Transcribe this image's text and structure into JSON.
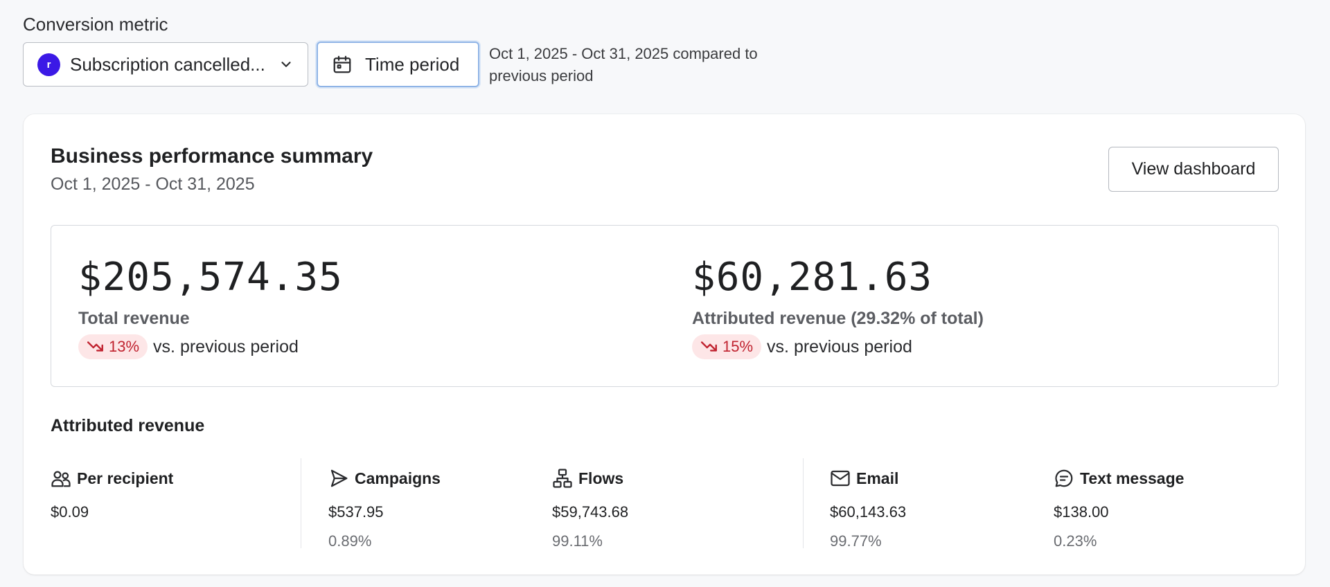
{
  "filters": {
    "metric_label": "Conversion metric",
    "metric_value": "Subscription cancelled...",
    "metric_brand_glyph": "r",
    "period_button_label": "Time period",
    "period_description": "Oct 1, 2025 - Oct 31, 2025 compared to previous period"
  },
  "summary": {
    "title": "Business performance summary",
    "date_range": "Oct 1, 2025 - Oct 31, 2025",
    "view_button_label": "View dashboard",
    "total": {
      "amount": "$205,574.35",
      "label": "Total revenue",
      "change": "13%",
      "change_direction": "down",
      "change_suffix": "vs. previous period"
    },
    "attributed": {
      "amount": "$60,281.63",
      "label": "Attributed revenue (29.32% of total)",
      "change": "15%",
      "change_direction": "down",
      "change_suffix": "vs. previous period"
    }
  },
  "attributed_breakdown": {
    "heading": "Attributed revenue",
    "items": [
      {
        "icon": "people-icon",
        "title": "Per recipient",
        "value": "$0.09",
        "pct": ""
      },
      {
        "icon": "send-icon",
        "title": "Campaigns",
        "value": "$537.95",
        "pct": "0.89%"
      },
      {
        "icon": "flow-icon",
        "title": "Flows",
        "value": "$59,743.68",
        "pct": "99.11%"
      },
      {
        "icon": "mail-icon",
        "title": "Email",
        "value": "$60,143.63",
        "pct": "99.77%"
      },
      {
        "icon": "chat-icon",
        "title": "Text message",
        "value": "$138.00",
        "pct": "0.23%"
      }
    ]
  },
  "colors": {
    "brand": "#3b19e6",
    "negative_text": "#c0222f",
    "negative_bg": "#fde6e7",
    "focus_ring": "#8fb4e6"
  }
}
